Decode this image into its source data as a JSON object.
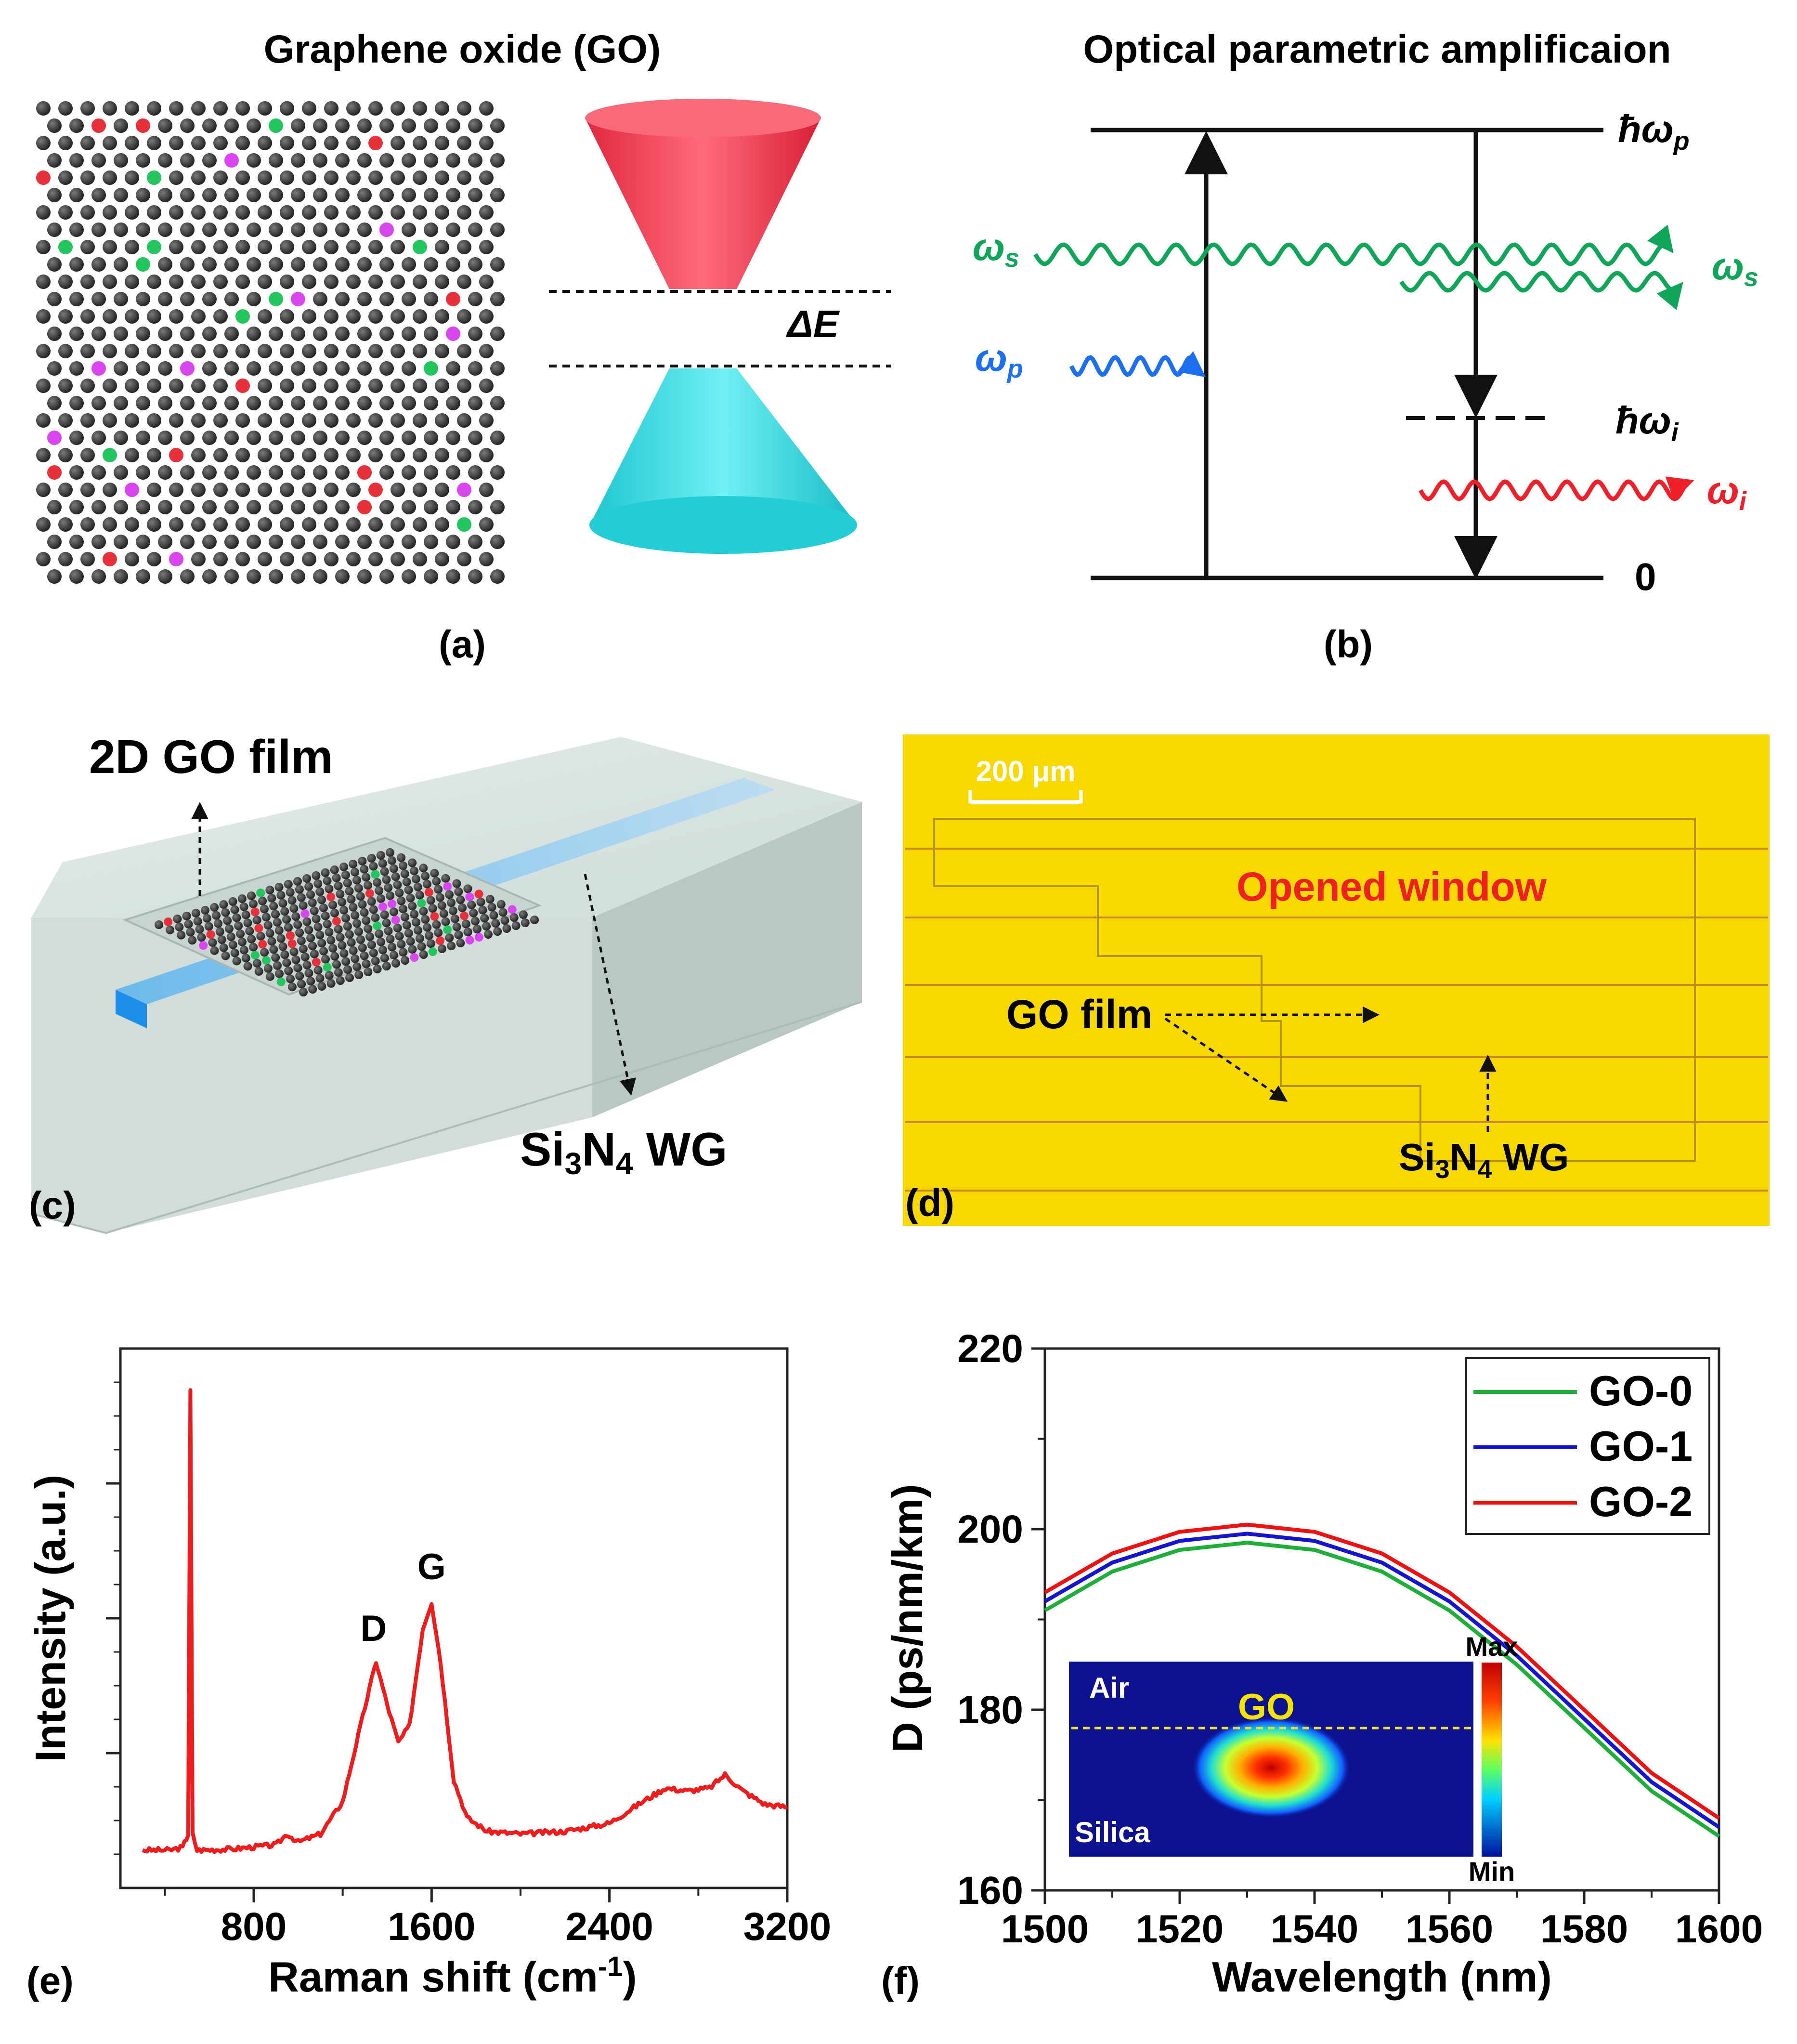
{
  "panel_a": {
    "title": "Graphene oxide (GO)",
    "label": "(a)",
    "gap_label": "ΔE",
    "colors": {
      "carbon": "#3a3a3a",
      "oxygen_red": "#e8303a",
      "oxygen_green": "#22c55e",
      "oxygen_magenta": "#d946ef",
      "cone_upper": "#f2455a",
      "cone_lower": "#2fd6dc"
    }
  },
  "panel_b": {
    "title": "Optical parametric amplificaion",
    "label": "(b)",
    "level_pump": "ħω",
    "level_pump_sub": "p",
    "level_idler": "ħω",
    "level_idler_sub": "i",
    "level_zero": "0",
    "signal_in": "ω",
    "signal_in_sub": "s",
    "signal_out": "ω",
    "signal_out_sub": "s",
    "pump_in": "ω",
    "pump_in_sub": "p",
    "idler_out": "ω",
    "idler_out_sub": "i",
    "colors": {
      "signal": "#10a65a",
      "pump": "#1d6ff2",
      "idler": "#f0202a"
    }
  },
  "panel_c": {
    "label": "(c)",
    "film_label": "2D GO film",
    "wg_label_prefix": "Si",
    "wg_label_sub1": "3",
    "wg_label_mid": "N",
    "wg_label_sub2": "4",
    "wg_label_suffix": " WG"
  },
  "panel_d": {
    "label": "(d)",
    "scale_bar": "200 μm",
    "window_label": "Opened window",
    "film_label": "GO film",
    "wg_label_prefix": "Si",
    "wg_label_sub1": "3",
    "wg_label_mid": "N",
    "wg_label_sub2": "4",
    "wg_label_suffix": " WG",
    "colors": {
      "background": "#f8d800",
      "window_text": "#ef2020"
    }
  },
  "panel_e": {
    "label": "(e)",
    "chart_data": {
      "type": "line",
      "title": "",
      "xlabel": "Raman shift (cm",
      "xlabel_sup": "-1",
      "xlabel_end": ")",
      "ylabel": "Intensity (a.u.)",
      "xlim": [
        200,
        3200
      ],
      "ylim": [
        0,
        100
      ],
      "x_ticks": [
        "800",
        "1600",
        "2400",
        "3200"
      ],
      "annotations": [
        {
          "text": "D",
          "x": 1350
        },
        {
          "text": "G",
          "x": 1600
        }
      ],
      "series": [
        {
          "name": "Raman",
          "color": "#ee1c1c",
          "points": [
            [
              300,
              7
            ],
            [
              420,
              7
            ],
            [
              480,
              7.5
            ],
            [
              505,
              10
            ],
            [
              515,
              92
            ],
            [
              525,
              10
            ],
            [
              545,
              7
            ],
            [
              700,
              7.2
            ],
            [
              900,
              8
            ],
            [
              950,
              10
            ],
            [
              1000,
              8.5
            ],
            [
              1100,
              10
            ],
            [
              1200,
              16
            ],
            [
              1280,
              30
            ],
            [
              1350,
              42
            ],
            [
              1400,
              34
            ],
            [
              1450,
              27
            ],
            [
              1500,
              30
            ],
            [
              1560,
              48
            ],
            [
              1600,
              53
            ],
            [
              1640,
              42
            ],
            [
              1700,
              20
            ],
            [
              1760,
              13
            ],
            [
              1850,
              10.5
            ],
            [
              2000,
              10
            ],
            [
              2200,
              10.5
            ],
            [
              2400,
              12
            ],
            [
              2550,
              16
            ],
            [
              2650,
              18.5
            ],
            [
              2750,
              18
            ],
            [
              2850,
              18.5
            ],
            [
              2920,
              21
            ],
            [
              3000,
              18
            ],
            [
              3100,
              15.5
            ],
            [
              3200,
              15
            ]
          ]
        }
      ]
    }
  },
  "panel_f": {
    "label": "(f)",
    "chart_data": {
      "type": "line",
      "title": "",
      "xlabel": "Wavelength (nm)",
      "ylabel": "D (ps/nm/km)",
      "xlim": [
        1500,
        1600
      ],
      "ylim": [
        160,
        220
      ],
      "x_ticks": [
        "1500",
        "1520",
        "1540",
        "1560",
        "1580",
        "1600"
      ],
      "y_ticks": [
        "160",
        "180",
        "200",
        "220"
      ],
      "legend_position": "top-right",
      "series": [
        {
          "name": "GO-0",
          "color": "#1fae3a",
          "points": [
            [
              1500,
              191.0
            ],
            [
              1510,
              195.3
            ],
            [
              1520,
              197.7
            ],
            [
              1530,
              198.5
            ],
            [
              1540,
              197.7
            ],
            [
              1550,
              195.3
            ],
            [
              1560,
              191.0
            ],
            [
              1570,
              185.0
            ],
            [
              1580,
              178.0
            ],
            [
              1590,
              171.0
            ],
            [
              1600,
              166.0
            ]
          ]
        },
        {
          "name": "GO-1",
          "color": "#1515d0",
          "points": [
            [
              1500,
              192.0
            ],
            [
              1510,
              196.3
            ],
            [
              1520,
              198.7
            ],
            [
              1530,
              199.5
            ],
            [
              1540,
              198.7
            ],
            [
              1550,
              196.3
            ],
            [
              1560,
              192.0
            ],
            [
              1570,
              186.0
            ],
            [
              1580,
              179.0
            ],
            [
              1590,
              172.0
            ],
            [
              1600,
              167.0
            ]
          ]
        },
        {
          "name": "GO-2",
          "color": "#ee1111",
          "points": [
            [
              1500,
              193.0
            ],
            [
              1510,
              197.3
            ],
            [
              1520,
              199.7
            ],
            [
              1530,
              200.5
            ],
            [
              1540,
              199.7
            ],
            [
              1550,
              197.3
            ],
            [
              1560,
              193.0
            ],
            [
              1570,
              187.0
            ],
            [
              1580,
              180.0
            ],
            [
              1590,
              173.0
            ],
            [
              1600,
              168.0
            ]
          ]
        }
      ],
      "inset": {
        "air": "Air",
        "go": "GO",
        "silica": "Silica",
        "max": "Max",
        "min": "Min"
      }
    }
  }
}
